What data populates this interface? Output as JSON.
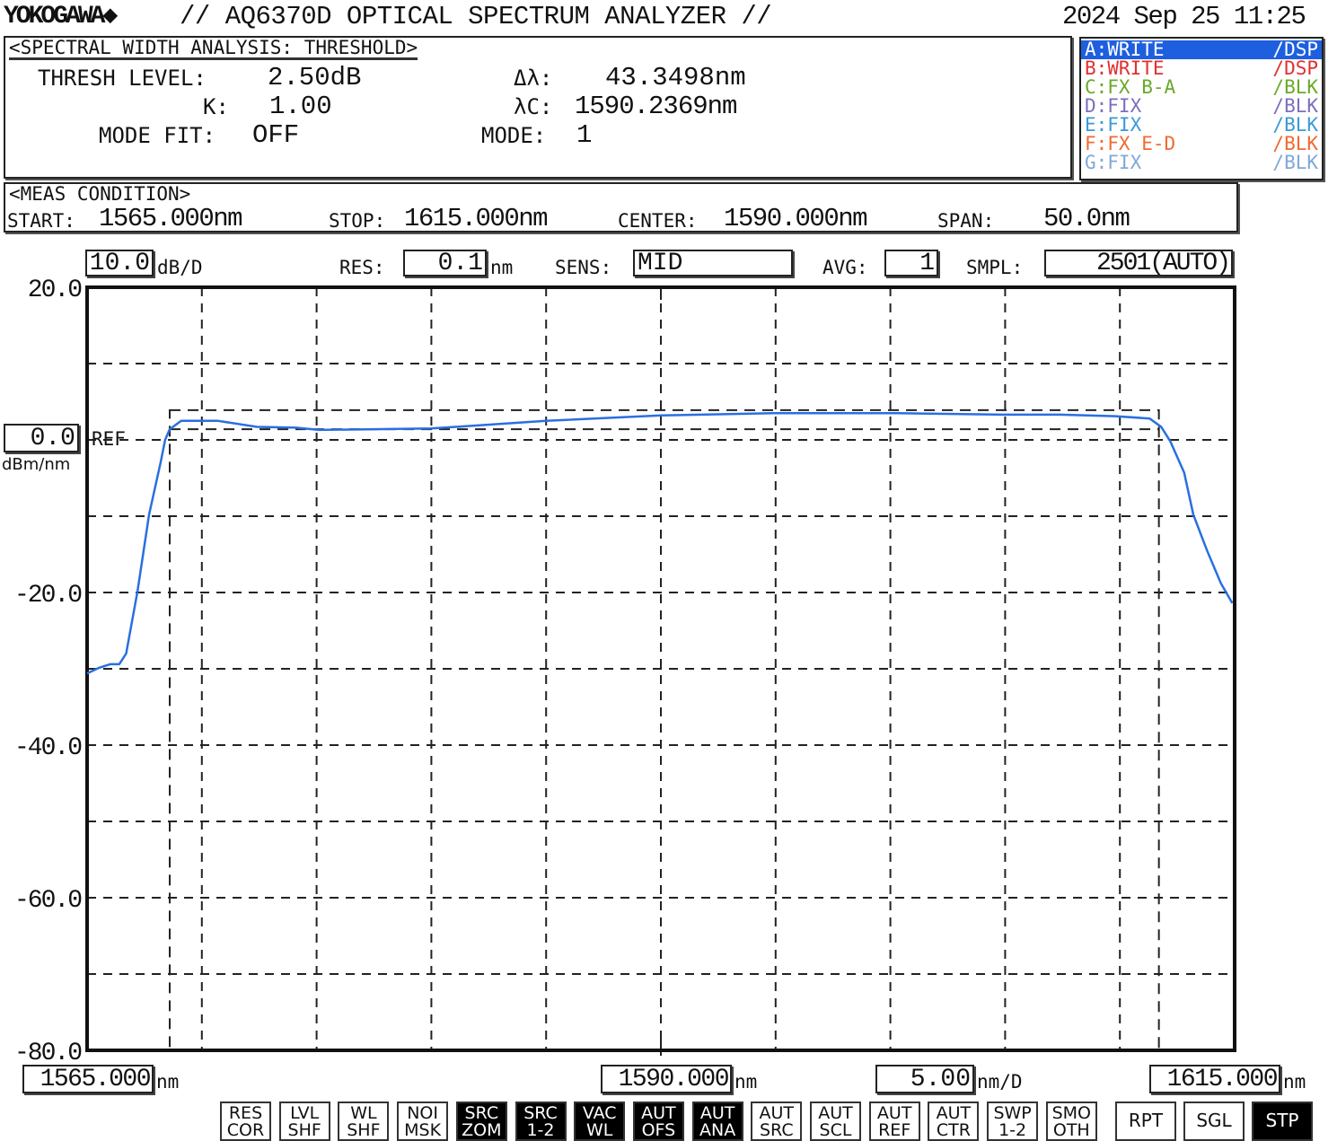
{
  "header": {
    "brand": "YOKOGAWA",
    "brand_mark": "◆",
    "title": "// AQ6370D OPTICAL SPECTRUM ANALYZER //",
    "datetime": "2024 Sep 25 11:25"
  },
  "analysis": {
    "title": "<SPECTRAL WIDTH ANALYSIS: THRESHOLD>",
    "thresh_label": "THRESH LEVEL:",
    "thresh_value": "2.50dB",
    "k_label": "K:",
    "k_value": "1.00",
    "modefit_label": "MODE FIT:",
    "modefit_value": "OFF",
    "dl_label": "Δλ:",
    "dl_value": "43.3498nm",
    "lc_label": "λC:",
    "lc_value": "1590.2369nm",
    "mode_label": "MODE:",
    "mode_value": "1"
  },
  "traces": [
    {
      "label": "A:WRITE",
      "state": "/DSP",
      "color": "#1e5fe0",
      "active": true
    },
    {
      "label": "B:WRITE",
      "state": "/DSP",
      "color": "#e03030",
      "active": false
    },
    {
      "label": "C:FX B-A",
      "state": "/BLK",
      "color": "#6aaa2a",
      "active": false
    },
    {
      "label": "D:FIX",
      "state": "/BLK",
      "color": "#7b6fc0",
      "active": false
    },
    {
      "label": "E:FIX",
      "state": "/BLK",
      "color": "#3a9ad8",
      "active": false
    },
    {
      "label": "F:FX E-D",
      "state": "/BLK",
      "color": "#f06a30",
      "active": false
    },
    {
      "label": "G:FIX",
      "state": "/BLK",
      "color": "#80a8d8",
      "active": false
    }
  ],
  "meas": {
    "title": "<MEAS CONDITION>",
    "start_label": "START:",
    "start": "1565.000nm",
    "stop_label": "STOP:",
    "stop": "1615.000nm",
    "center_label": "CENTER:",
    "center": "1590.000nm",
    "span_label": "SPAN:",
    "span": "50.0nm"
  },
  "settings": {
    "scale": "10.0",
    "scale_unit": "dB/D",
    "res_label": "RES:",
    "res": "0.1",
    "res_unit": "nm",
    "sens_label": "SENS:",
    "sens": "MID",
    "avg_label": "AVG:",
    "avg": "1",
    "smpl_label": "SMPL:",
    "smpl": "2501(AUTO)"
  },
  "ref": {
    "value": "0.0",
    "label": "REF",
    "unit": "dBm/nm"
  },
  "x_axis": {
    "start": "1565.000",
    "start_unit": "nm",
    "center": "1590.000",
    "center_unit": "nm",
    "per_div": "5.00",
    "per_div_unit": "nm/D",
    "stop": "1615.000",
    "stop_unit": "nm"
  },
  "soft_keys": [
    {
      "l1": "RES",
      "l2": "COR",
      "on": false
    },
    {
      "l1": "LVL",
      "l2": "SHF",
      "on": false
    },
    {
      "l1": "WL",
      "l2": "SHF",
      "on": false
    },
    {
      "l1": "NOI",
      "l2": "MSK",
      "on": false
    },
    {
      "l1": "SRC",
      "l2": "ZOM",
      "on": true
    },
    {
      "l1": "SRC",
      "l2": "1-2",
      "on": true
    },
    {
      "l1": "VAC",
      "l2": "WL",
      "on": true
    },
    {
      "l1": "AUT",
      "l2": "OFS",
      "on": true
    },
    {
      "l1": "AUT",
      "l2": "ANA",
      "on": true
    },
    {
      "l1": "AUT",
      "l2": "SRC",
      "on": false
    },
    {
      "l1": "AUT",
      "l2": "SCL",
      "on": false
    },
    {
      "l1": "AUT",
      "l2": "REF",
      "on": false
    },
    {
      "l1": "AUT",
      "l2": "CTR",
      "on": false
    },
    {
      "l1": "SWP",
      "l2": "1-2",
      "on": false
    },
    {
      "l1": "SMO",
      "l2": "OTH",
      "on": false
    }
  ],
  "run_keys": [
    {
      "label": "RPT",
      "on": false
    },
    {
      "label": "SGL",
      "on": false
    },
    {
      "label": "STP",
      "on": true
    }
  ],
  "chart_data": {
    "type": "line",
    "xlabel": "",
    "ylabel": "",
    "xlim": [
      1565,
      1615
    ],
    "ylim": [
      -80,
      20
    ],
    "x_divisions": 10,
    "y_divisions": 10,
    "grid": true,
    "y_tick_labels": [
      {
        "v": 20,
        "t": "20.0"
      },
      {
        "v": -20,
        "t": "-20.0"
      },
      {
        "v": -40,
        "t": "-40.0"
      },
      {
        "v": -60,
        "t": "-60.0"
      },
      {
        "v": -80,
        "t": "-80.0"
      }
    ],
    "threshold_box": {
      "x": [
        1568.6,
        1611.7
      ],
      "y": [
        1.4,
        3.9
      ]
    },
    "series": [
      {
        "color": "#2a6fe0",
        "x": [
          1565.0,
          1565.5,
          1566.0,
          1566.4,
          1566.7,
          1567.2,
          1567.7,
          1568.2,
          1568.4,
          1568.6,
          1569.1,
          1570.7,
          1572.4,
          1574.1,
          1575.1,
          1580.0,
          1585.0,
          1590.0,
          1594.9,
          1600.3,
          1604.9,
          1607.4,
          1609.8,
          1611.3,
          1611.8,
          1612.2,
          1612.8,
          1613.2,
          1613.8,
          1614.4,
          1614.9
        ],
        "y": [
          -30.6,
          -29.9,
          -29.4,
          -29.4,
          -28.0,
          -19.8,
          -9.8,
          -3.0,
          0.0,
          1.4,
          2.5,
          2.5,
          1.7,
          1.6,
          1.3,
          1.5,
          2.5,
          3.2,
          3.5,
          3.5,
          3.3,
          3.3,
          3.1,
          2.8,
          1.7,
          -0.2,
          -4.3,
          -9.8,
          -14.5,
          -18.8,
          -21.4
        ]
      }
    ]
  }
}
